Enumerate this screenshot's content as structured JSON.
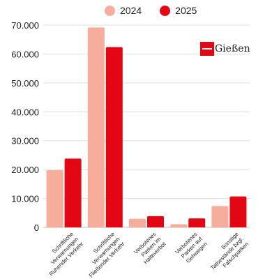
{
  "chart_data": {
    "type": "bar",
    "categories": [
      [
        "Schriftliche",
        "Verwarnungen",
        "Ruhender Verkehr"
      ],
      [
        "Schriftliche",
        "Verwarnungen",
        "Fließender Verkehr"
      ],
      [
        "Verbotenes",
        "Parken im",
        "Halteverbot"
      ],
      [
        "Verbotenes",
        "Parken auf",
        "Gehwegen"
      ],
      [
        "Sonstige",
        "Tatbestände bzgl.",
        "Falschparken"
      ]
    ],
    "series": [
      {
        "name": "2024",
        "color": "#f7ad9c",
        "values": [
          19800,
          69200,
          3000,
          1100,
          7400
        ]
      },
      {
        "name": "2025",
        "color": "#e30613",
        "values": [
          23800,
          62400,
          3900,
          3100,
          10700
        ]
      }
    ],
    "ylim": [
      0,
      70000
    ],
    "yticks": [
      "0",
      "10.000",
      "20.000",
      "30.000",
      "40.000",
      "50.000",
      "60.000",
      "70.000"
    ],
    "grid": true,
    "legend_position": "top-center"
  },
  "logo": {
    "text": "Gießen",
    "icon": "giessen-logo-icon"
  }
}
